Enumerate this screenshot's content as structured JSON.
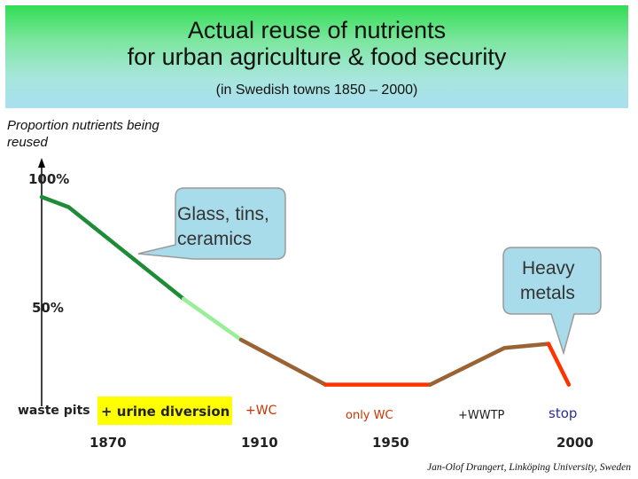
{
  "header": {
    "title_line1": "Actual reuse of nutrients",
    "title_line2": "for urban agriculture & food security",
    "subtitle": "(in Swedish towns 1850 – 2000)"
  },
  "colors": {
    "dark_green": "#1e8c36",
    "light_green": "#99ee99",
    "brown": "#9a6333",
    "red": "#ff3300",
    "callout_fill": "#a9dcea",
    "highlight": "#ffff00"
  },
  "chart_data": {
    "type": "line",
    "title": "Actual reuse of nutrients for urban agriculture & food security",
    "ylabel": "Proportion nutrients being reused",
    "xlabel": "",
    "xlim": [
      1850,
      2000
    ],
    "ylim": [
      0,
      100
    ],
    "x_ticks": [
      "1870",
      "1910",
      "1950",
      "2000"
    ],
    "y_ticks": [
      "100%",
      "50%"
    ],
    "series": [
      {
        "color": "#1e8c36",
        "points": [
          [
            1850,
            100
          ],
          [
            1858,
            95
          ],
          [
            1892,
            50
          ]
        ]
      },
      {
        "color": "#99ee99",
        "points": [
          [
            1892,
            50
          ],
          [
            1909,
            30
          ]
        ]
      },
      {
        "color": "#9a6333",
        "points": [
          [
            1909,
            30
          ],
          [
            1934,
            8
          ]
        ]
      },
      {
        "color": "#ff3300",
        "points": [
          [
            1934,
            8
          ],
          [
            1965,
            8
          ]
        ]
      },
      {
        "color": "#9a6333",
        "points": [
          [
            1965,
            8
          ],
          [
            1987,
            26
          ],
          [
            2000,
            28
          ]
        ]
      },
      {
        "color": "#ff3300",
        "points": [
          [
            2000,
            28
          ],
          [
            2006,
            8
          ]
        ]
      }
    ],
    "stage_labels": [
      {
        "text": "waste pits",
        "color": "#222222"
      },
      {
        "text": "+ urine diversion",
        "color": "#222222"
      },
      {
        "text": "+WC",
        "color": "#cc3300"
      },
      {
        "text": "only WC",
        "color": "#cc3300"
      },
      {
        "text": "+WWTP",
        "color": "#222222"
      },
      {
        "text": "stop",
        "color": "#2d2d9a"
      }
    ],
    "annotations": [
      {
        "text_line1": "Glass, tins,",
        "text_line2": "ceramics"
      },
      {
        "text_line1": "Heavy",
        "text_line2": "metals"
      }
    ]
  },
  "credit": "Jan-Olof Drangert, Linköping University, Sweden"
}
